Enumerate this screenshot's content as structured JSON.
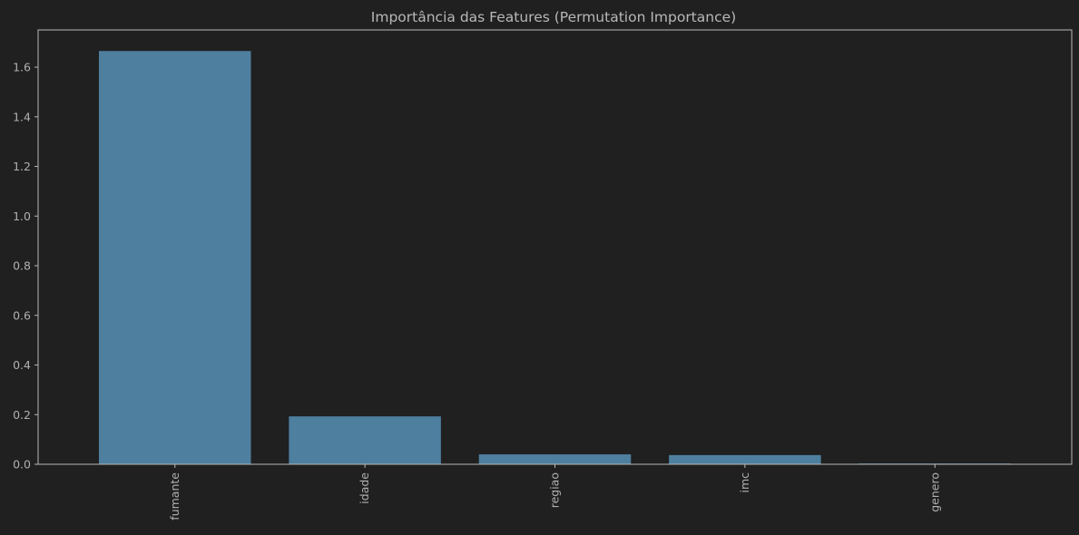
{
  "chart_data": {
    "type": "bar",
    "title": "Importância das Features (Permutation Importance)",
    "xlabel": "",
    "ylabel": "",
    "categories": [
      "fumante",
      "idade",
      "regiao",
      "imc",
      "genero"
    ],
    "values": [
      1.665,
      0.193,
      0.04,
      0.037,
      0.003
    ],
    "ylim": [
      0,
      1.75
    ],
    "yticks": [
      0.0,
      0.2,
      0.4,
      0.6,
      0.8,
      1.0,
      1.2,
      1.4,
      1.6
    ],
    "ytick_labels": [
      "0.0",
      "0.2",
      "0.4",
      "0.6",
      "0.8",
      "1.0",
      "1.2",
      "1.4",
      "1.6"
    ],
    "x_tick_rotation": "vertical",
    "grid": false,
    "legend": "none",
    "colors": {
      "background": "#202020",
      "bar": "#4e7f9f",
      "axis": "#b8b8b8",
      "text": "#b0b0b0"
    }
  }
}
